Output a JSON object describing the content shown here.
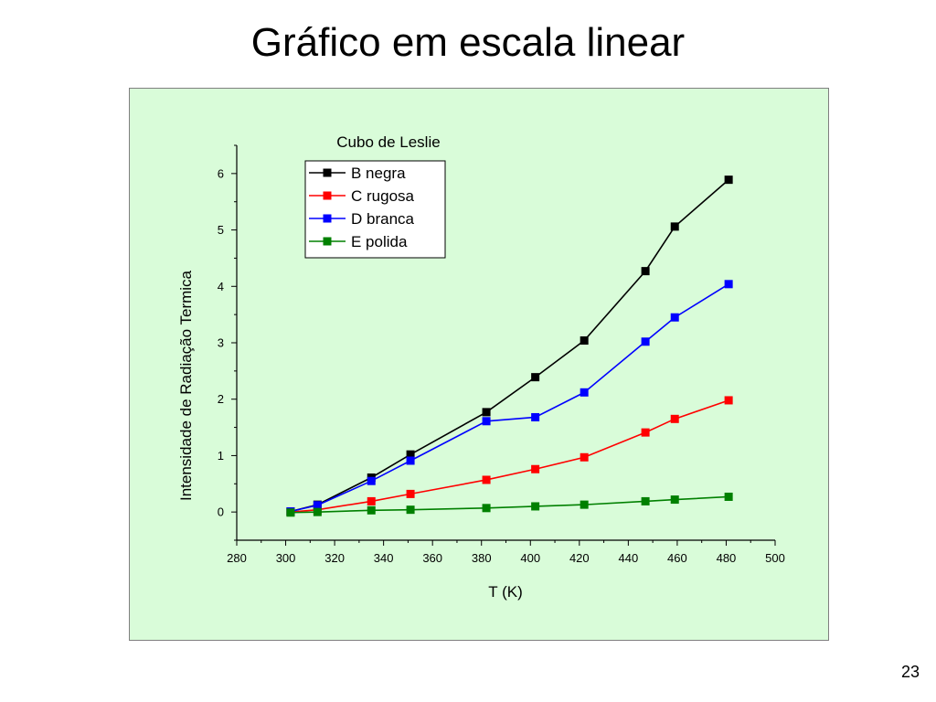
{
  "slide": {
    "title": "Gráfico em escala linear",
    "page_number": "23"
  },
  "chart_data": {
    "type": "line",
    "title": "Cubo de Leslie",
    "xlabel": "T (K)",
    "ylabel": "Intensidade de Radiação Termica",
    "xlim": [
      280,
      500
    ],
    "ylim": [
      -0.5,
      6.5
    ],
    "xticks": [
      280,
      300,
      320,
      340,
      360,
      380,
      400,
      420,
      440,
      460,
      480,
      500
    ],
    "yticks": [
      0,
      1,
      2,
      3,
      4,
      5,
      6
    ],
    "grid": false,
    "legend_position": "top-left",
    "background_color": "#d9fcd9",
    "series": [
      {
        "name": "B  negra",
        "color": "#000000",
        "marker": "square",
        "x": [
          302,
          313,
          335,
          351,
          382,
          402,
          422,
          447,
          459,
          481
        ],
        "y": [
          0.01,
          0.13,
          0.61,
          1.02,
          1.77,
          2.39,
          3.04,
          4.27,
          5.06,
          5.89
        ]
      },
      {
        "name": "C  rugosa",
        "color": "#ff0000",
        "marker": "square",
        "x": [
          302,
          313,
          335,
          351,
          382,
          402,
          422,
          447,
          459,
          481
        ],
        "y": [
          0.0,
          0.04,
          0.19,
          0.32,
          0.57,
          0.76,
          0.97,
          1.41,
          1.65,
          1.98
        ]
      },
      {
        "name": "D  branca",
        "color": "#0000ff",
        "marker": "square",
        "x": [
          302,
          313,
          335,
          351,
          382,
          402,
          422,
          447,
          459,
          481
        ],
        "y": [
          0.01,
          0.12,
          0.55,
          0.91,
          1.61,
          1.68,
          2.12,
          3.02,
          3.45,
          4.04
        ]
      },
      {
        "name": "E  polida",
        "color": "#008000",
        "marker": "square",
        "x": [
          302,
          313,
          335,
          351,
          382,
          402,
          422,
          447,
          459,
          481
        ],
        "y": [
          -0.01,
          0.0,
          0.03,
          0.04,
          0.07,
          0.1,
          0.13,
          0.19,
          0.22,
          0.27
        ]
      }
    ]
  }
}
